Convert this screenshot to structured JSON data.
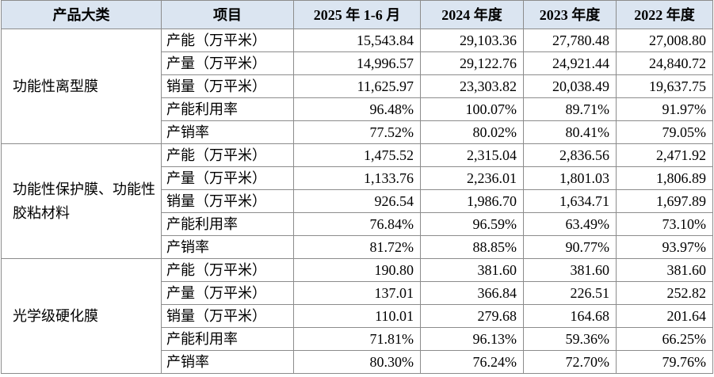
{
  "table": {
    "header": [
      "产品大类",
      "项目",
      "2025 年 1-6 月",
      "2024 年度",
      "2023 年度",
      "2022 年度"
    ],
    "groups": [
      {
        "category": "功能性离型膜",
        "rows": [
          [
            "产能（万平米）",
            "15,543.84",
            "29,103.36",
            "27,780.48",
            "27,008.80"
          ],
          [
            "产量（万平米）",
            "14,996.57",
            "29,122.76",
            "24,921.44",
            "24,840.72"
          ],
          [
            "销量（万平米）",
            "11,625.97",
            "23,303.82",
            "20,038.49",
            "19,637.75"
          ],
          [
            "产能利用率",
            "96.48%",
            "100.07%",
            "89.71%",
            "91.97%"
          ],
          [
            "产销率",
            "77.52%",
            "80.02%",
            "80.41%",
            "79.05%"
          ]
        ]
      },
      {
        "category": "功能性保护膜、功能性胶粘材料",
        "rows": [
          [
            "产能（万平米）",
            "1,475.52",
            "2,315.04",
            "2,836.56",
            "2,471.92"
          ],
          [
            "产量（万平米）",
            "1,133.76",
            "2,236.01",
            "1,801.03",
            "1,806.89"
          ],
          [
            "销量（万平米）",
            "926.54",
            "1,986.70",
            "1,634.71",
            "1,697.89"
          ],
          [
            "产能利用率",
            "76.84%",
            "96.59%",
            "63.49%",
            "73.10%"
          ],
          [
            "产销率",
            "81.72%",
            "88.85%",
            "90.77%",
            "93.97%"
          ]
        ]
      },
      {
        "category": "光学级硬化膜",
        "rows": [
          [
            "产能（万平米）",
            "190.80",
            "381.60",
            "381.60",
            "381.60"
          ],
          [
            "产量（万平米）",
            "137.01",
            "366.84",
            "226.51",
            "252.82"
          ],
          [
            "销量（万平米）",
            "110.01",
            "279.68",
            "164.68",
            "201.64"
          ],
          [
            "产能利用率",
            "71.81%",
            "96.13%",
            "59.36%",
            "66.25%"
          ],
          [
            "产销率",
            "80.30%",
            "76.24%",
            "72.70%",
            "79.76%"
          ]
        ]
      }
    ]
  }
}
